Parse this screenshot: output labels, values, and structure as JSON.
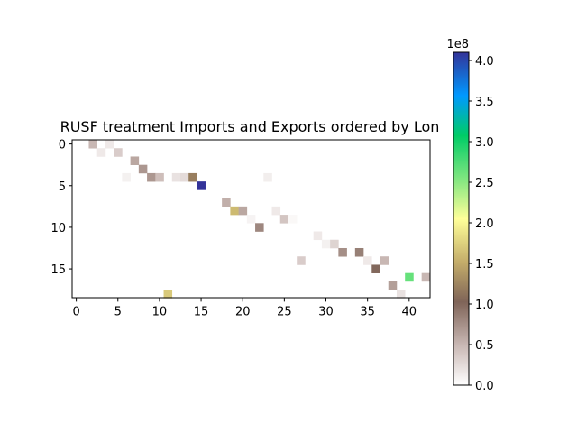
{
  "chart_data": {
    "type": "heatmap",
    "title": "RUSF treatment Imports and Exports ordered by Lon",
    "xlabel": "",
    "ylabel": "",
    "n_cols": 43,
    "n_rows": 19,
    "x_ticks": [
      0,
      5,
      10,
      15,
      20,
      25,
      30,
      35,
      40
    ],
    "y_ticks": [
      0,
      5,
      10,
      15
    ],
    "colorbar": {
      "colormap": "terrain_r",
      "vmin": 0,
      "vmax": 410000000,
      "ticks": [
        0,
        0.5,
        1.0,
        1.5,
        2.0,
        2.5,
        3.0,
        3.5,
        4.0
      ],
      "tick_labels": [
        "0.0",
        "0.5",
        "1.0",
        "1.5",
        "2.0",
        "2.5",
        "3.0",
        "3.5",
        "4.0"
      ],
      "multiplier_label": "1e8"
    },
    "cells": [
      {
        "row": 0,
        "col": 2,
        "value": 50000000
      },
      {
        "row": 0,
        "col": 4,
        "value": 15000000
      },
      {
        "row": 1,
        "col": 3,
        "value": 15000000
      },
      {
        "row": 1,
        "col": 5,
        "value": 35000000
      },
      {
        "row": 2,
        "col": 7,
        "value": 60000000
      },
      {
        "row": 3,
        "col": 8,
        "value": 70000000
      },
      {
        "row": 4,
        "col": 6,
        "value": 10000000
      },
      {
        "row": 4,
        "col": 9,
        "value": 70000000
      },
      {
        "row": 4,
        "col": 10,
        "value": 45000000
      },
      {
        "row": 4,
        "col": 12,
        "value": 20000000
      },
      {
        "row": 4,
        "col": 13,
        "value": 25000000
      },
      {
        "row": 4,
        "col": 14,
        "value": 120000000
      },
      {
        "row": 4,
        "col": 23,
        "value": 12000000
      },
      {
        "row": 5,
        "col": 15,
        "value": 410000000
      },
      {
        "row": 7,
        "col": 18,
        "value": 55000000
      },
      {
        "row": 8,
        "col": 19,
        "value": 160000000
      },
      {
        "row": 8,
        "col": 20,
        "value": 60000000
      },
      {
        "row": 8,
        "col": 24,
        "value": 15000000
      },
      {
        "row": 9,
        "col": 21,
        "value": 8000000
      },
      {
        "row": 9,
        "col": 25,
        "value": 40000000
      },
      {
        "row": 9,
        "col": 26,
        "value": 5000000
      },
      {
        "row": 10,
        "col": 22,
        "value": 80000000
      },
      {
        "row": 11,
        "col": 29,
        "value": 15000000
      },
      {
        "row": 12,
        "col": 30,
        "value": 10000000
      },
      {
        "row": 12,
        "col": 31,
        "value": 30000000
      },
      {
        "row": 13,
        "col": 32,
        "value": 75000000
      },
      {
        "row": 13,
        "col": 34,
        "value": 85000000
      },
      {
        "row": 14,
        "col": 27,
        "value": 35000000
      },
      {
        "row": 14,
        "col": 35,
        "value": 15000000
      },
      {
        "row": 14,
        "col": 37,
        "value": 50000000
      },
      {
        "row": 15,
        "col": 36,
        "value": 100000000
      },
      {
        "row": 16,
        "col": 40,
        "value": 265000000
      },
      {
        "row": 16,
        "col": 42,
        "value": 50000000
      },
      {
        "row": 17,
        "col": 38,
        "value": 65000000
      },
      {
        "row": 18,
        "col": 39,
        "value": 20000000
      },
      {
        "row": 18,
        "col": 11,
        "value": 170000000
      }
    ]
  }
}
